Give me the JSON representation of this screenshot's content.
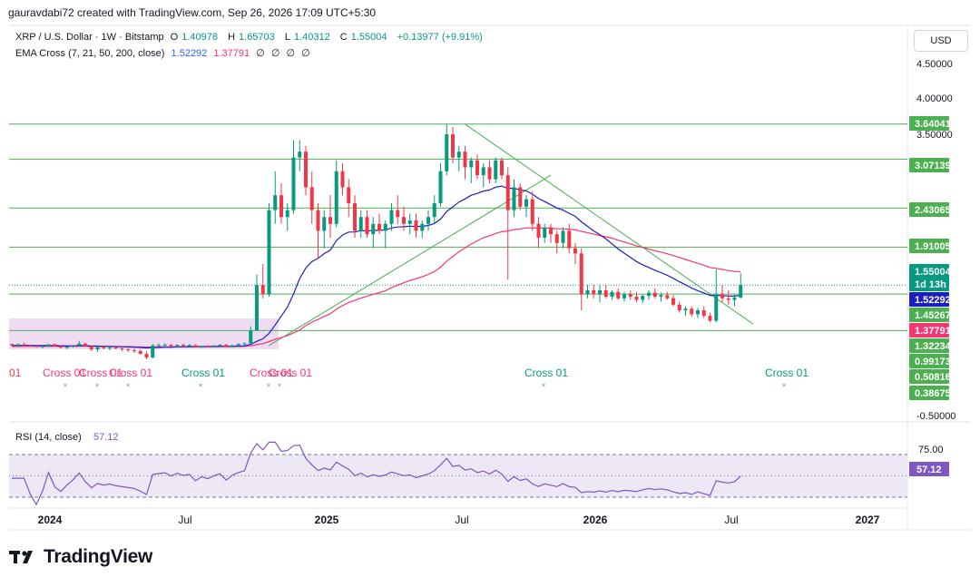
{
  "header": {
    "attribution": "gauravdabi72 created with TradingView.com, Sep 26, 2026 17:09 UTC+5:30"
  },
  "symbol": {
    "name": "XRP / U.S. Dollar · 1W · Bitstamp",
    "open_label": "O",
    "open": "1.40978",
    "high_label": "H",
    "high": "1.65703",
    "low_label": "L",
    "low": "1.40312",
    "close_label": "C",
    "close": "1.55004",
    "change": "+0.13977 (+9.91%)"
  },
  "indicator": {
    "name": "EMA Cross (7, 21, 50, 200, close)",
    "v1": "1.52292",
    "v2": "1.37791",
    "v3": "∅",
    "v4": "∅",
    "v5": "∅",
    "v6": "∅"
  },
  "currency_button": "USD",
  "price_axis": {
    "ticks": [
      {
        "label": "4.50000",
        "value": 4.5
      },
      {
        "label": "4.00000",
        "value": 4.0
      },
      {
        "label": "3.50000",
        "value": 3.5
      },
      {
        "label": "-0.50000",
        "value": -0.5
      }
    ]
  },
  "horizontal_levels": [
    3.64041,
    3.07139,
    2.43065,
    1.91005,
    1.45267,
    0.99173
  ],
  "price_labels": [
    {
      "text": "3.64041",
      "bg": "#4caf50",
      "fg": "#ffffff"
    },
    {
      "text": "3.07139",
      "bg": "#4caf50",
      "fg": "#ffffff"
    },
    {
      "text": "2.43065",
      "bg": "#4caf50",
      "fg": "#ffffff"
    },
    {
      "text": "1.91005",
      "bg": "#4caf50",
      "fg": "#ffffff"
    },
    {
      "text": "1.55004",
      "bg": "#089981",
      "fg": "#ffffff"
    },
    {
      "text": "1d 13h",
      "bg": "#089981",
      "fg": "#ffffff"
    },
    {
      "text": "1.52292",
      "bg": "#1c1fbf",
      "fg": "#ffffff"
    },
    {
      "text": "1.45267",
      "bg": "#4caf50",
      "fg": "#ffffff"
    },
    {
      "text": "1.37791",
      "bg": "#f23673",
      "fg": "#ffffff"
    },
    {
      "text": "1.32234",
      "bg": "#4caf50",
      "fg": "#ffffff"
    },
    {
      "text": "0.99173",
      "bg": "#4caf50",
      "fg": "#ffffff"
    },
    {
      "text": "0.50816",
      "bg": "#4caf50",
      "fg": "#ffffff"
    },
    {
      "text": "0.38675",
      "bg": "#4caf50",
      "fg": "#ffffff"
    }
  ],
  "cross_labels": [
    {
      "text": "Cross 01",
      "color": "#f23673"
    },
    {
      "text": "Cross 01",
      "color": "#f23673"
    },
    {
      "text": "Cross 01",
      "color": "#f23673"
    },
    {
      "text": "Cross 01",
      "color": "#089981"
    },
    {
      "text": "Cross 01",
      "color": "#f23673"
    },
    {
      "text": "Cross 01",
      "color": "#089981"
    },
    {
      "text": "Cross 01",
      "color": "#f23673"
    },
    {
      "text": "Cross 01",
      "color": "#089981"
    }
  ],
  "cross_partial_label": "01",
  "rsi": {
    "label": "RSI (14, close)",
    "value": "57.12",
    "top_level_label": "75.00"
  },
  "time_axis": [
    "2024",
    "Jul",
    "2025",
    "Jul",
    "2026",
    "Jul",
    "2027"
  ],
  "brand": "TradingView",
  "colors": {
    "up": "#089981",
    "down": "#f23645",
    "ema_blue": "#1c1fbf",
    "ema_pink": "#f23673",
    "levels": "#4caf50",
    "rsi_line": "#7e57c2",
    "rsi_band": "#ede7f6"
  },
  "chart_data": {
    "type": "candlestick",
    "title": "XRP / U.S. Dollar · 1W · Bitstamp",
    "candles": [
      [
        0.62,
        0.63,
        0.57,
        0.59
      ],
      [
        0.59,
        0.64,
        0.56,
        0.61
      ],
      [
        0.61,
        0.66,
        0.58,
        0.58
      ],
      [
        0.58,
        0.6,
        0.54,
        0.57
      ],
      [
        0.57,
        0.59,
        0.52,
        0.54
      ],
      [
        0.54,
        0.58,
        0.5,
        0.56
      ],
      [
        0.56,
        0.62,
        0.54,
        0.61
      ],
      [
        0.61,
        0.64,
        0.55,
        0.55
      ],
      [
        0.55,
        0.58,
        0.5,
        0.52
      ],
      [
        0.52,
        0.56,
        0.49,
        0.55
      ],
      [
        0.55,
        0.6,
        0.52,
        0.58
      ],
      [
        0.58,
        0.71,
        0.56,
        0.63
      ],
      [
        0.63,
        0.66,
        0.55,
        0.56
      ],
      [
        0.56,
        0.58,
        0.47,
        0.49
      ],
      [
        0.49,
        0.55,
        0.46,
        0.53
      ],
      [
        0.53,
        0.56,
        0.49,
        0.51
      ],
      [
        0.51,
        0.54,
        0.48,
        0.52
      ],
      [
        0.52,
        0.55,
        0.49,
        0.5
      ],
      [
        0.5,
        0.53,
        0.47,
        0.49
      ],
      [
        0.49,
        0.51,
        0.46,
        0.48
      ],
      [
        0.48,
        0.5,
        0.45,
        0.47
      ],
      [
        0.47,
        0.49,
        0.43,
        0.44
      ],
      [
        0.44,
        0.47,
        0.38,
        0.4
      ],
      [
        0.4,
        0.62,
        0.39,
        0.58
      ],
      [
        0.58,
        0.63,
        0.55,
        0.59
      ],
      [
        0.59,
        0.64,
        0.57,
        0.6
      ],
      [
        0.6,
        0.62,
        0.55,
        0.57
      ],
      [
        0.57,
        0.61,
        0.54,
        0.6
      ],
      [
        0.6,
        0.63,
        0.56,
        0.58
      ],
      [
        0.58,
        0.62,
        0.55,
        0.59
      ],
      [
        0.59,
        0.61,
        0.52,
        0.53
      ],
      [
        0.53,
        0.58,
        0.51,
        0.57
      ],
      [
        0.57,
        0.6,
        0.54,
        0.55
      ],
      [
        0.55,
        0.59,
        0.52,
        0.58
      ],
      [
        0.58,
        0.62,
        0.55,
        0.6
      ],
      [
        0.6,
        0.63,
        0.52,
        0.54
      ],
      [
        0.54,
        0.6,
        0.52,
        0.59
      ],
      [
        0.59,
        0.64,
        0.56,
        0.62
      ],
      [
        0.62,
        0.66,
        0.58,
        0.64
      ],
      [
        0.64,
        1.05,
        0.62,
        1.0
      ],
      [
        1.0,
        1.65,
        0.98,
        1.55
      ],
      [
        1.55,
        1.75,
        1.4,
        1.45
      ],
      [
        1.45,
        2.5,
        1.42,
        2.4
      ],
      [
        2.4,
        2.9,
        2.2,
        2.6
      ],
      [
        2.6,
        2.75,
        2.2,
        2.3
      ],
      [
        2.3,
        2.5,
        2.1,
        2.4
      ],
      [
        2.4,
        3.4,
        2.35,
        3.1
      ],
      [
        3.1,
        3.4,
        2.9,
        3.2
      ],
      [
        3.2,
        3.3,
        2.6,
        2.7
      ],
      [
        2.7,
        2.9,
        2.2,
        2.4
      ],
      [
        2.4,
        2.5,
        1.8,
        2.1
      ],
      [
        2.1,
        2.4,
        1.9,
        2.3
      ],
      [
        2.3,
        2.6,
        2.0,
        2.2
      ],
      [
        2.2,
        3.05,
        2.15,
        2.9
      ],
      [
        2.9,
        3.0,
        2.6,
        2.7
      ],
      [
        2.7,
        2.8,
        2.3,
        2.5
      ],
      [
        2.5,
        2.6,
        2.0,
        2.1
      ],
      [
        2.1,
        2.4,
        2.0,
        2.3
      ],
      [
        2.3,
        2.4,
        2.0,
        2.05
      ],
      [
        2.05,
        2.3,
        1.9,
        2.2
      ],
      [
        2.2,
        2.35,
        2.05,
        2.1
      ],
      [
        2.1,
        2.25,
        1.9,
        2.2
      ],
      [
        2.2,
        2.5,
        2.1,
        2.4
      ],
      [
        2.4,
        2.6,
        2.2,
        2.3
      ],
      [
        2.3,
        2.45,
        2.1,
        2.2
      ],
      [
        2.2,
        2.35,
        2.05,
        2.25
      ],
      [
        2.25,
        2.35,
        2.0,
        2.1
      ],
      [
        2.1,
        2.25,
        2.0,
        2.2
      ],
      [
        2.2,
        2.4,
        2.1,
        2.3
      ],
      [
        2.3,
        2.6,
        2.2,
        2.5
      ],
      [
        2.5,
        3.0,
        2.45,
        2.9
      ],
      [
        2.9,
        3.64,
        2.85,
        3.5
      ],
      [
        3.5,
        3.6,
        3.0,
        3.1
      ],
      [
        3.1,
        3.3,
        2.9,
        3.2
      ],
      [
        3.2,
        3.3,
        2.8,
        2.95
      ],
      [
        2.95,
        3.1,
        2.75,
        3.05
      ],
      [
        3.05,
        3.15,
        2.8,
        2.85
      ],
      [
        2.85,
        3.0,
        2.7,
        2.95
      ],
      [
        2.95,
        3.05,
        2.75,
        2.8
      ],
      [
        2.8,
        3.1,
        2.75,
        3.05
      ],
      [
        3.05,
        3.1,
        2.8,
        2.85
      ],
      [
        2.85,
        2.95,
        1.6,
        2.4
      ],
      [
        2.4,
        2.8,
        2.3,
        2.7
      ],
      [
        2.7,
        2.75,
        2.4,
        2.45
      ],
      [
        2.45,
        2.6,
        2.3,
        2.55
      ],
      [
        2.55,
        2.65,
        2.1,
        2.2
      ],
      [
        2.2,
        2.3,
        1.9,
        2.0
      ],
      [
        2.0,
        2.2,
        1.95,
        2.15
      ],
      [
        2.15,
        2.2,
        1.95,
        2.05
      ],
      [
        2.05,
        2.1,
        1.85,
        1.95
      ],
      [
        1.95,
        2.15,
        1.9,
        2.1
      ],
      [
        2.1,
        2.2,
        1.85,
        1.9
      ],
      [
        1.9,
        1.95,
        1.75,
        1.85
      ],
      [
        1.85,
        1.9,
        1.25,
        1.45
      ],
      [
        1.45,
        1.55,
        1.4,
        1.5
      ],
      [
        1.5,
        1.55,
        1.4,
        1.45
      ],
      [
        1.45,
        1.55,
        1.35,
        1.5
      ],
      [
        1.5,
        1.55,
        1.4,
        1.42
      ],
      [
        1.42,
        1.5,
        1.38,
        1.48
      ],
      [
        1.48,
        1.52,
        1.38,
        1.4
      ],
      [
        1.4,
        1.48,
        1.36,
        1.45
      ],
      [
        1.45,
        1.5,
        1.38,
        1.42
      ],
      [
        1.42,
        1.48,
        1.35,
        1.38
      ],
      [
        1.38,
        1.45,
        1.34,
        1.43
      ],
      [
        1.43,
        1.5,
        1.38,
        1.47
      ],
      [
        1.47,
        1.52,
        1.4,
        1.42
      ],
      [
        1.42,
        1.47,
        1.36,
        1.44
      ],
      [
        1.44,
        1.48,
        1.38,
        1.4
      ],
      [
        1.4,
        1.44,
        1.3,
        1.32
      ],
      [
        1.32,
        1.36,
        1.22,
        1.25
      ],
      [
        1.25,
        1.3,
        1.18,
        1.27
      ],
      [
        1.27,
        1.3,
        1.17,
        1.2
      ],
      [
        1.2,
        1.28,
        1.15,
        1.25
      ],
      [
        1.25,
        1.3,
        1.15,
        1.18
      ],
      [
        1.18,
        1.22,
        1.1,
        1.12
      ],
      [
        1.12,
        1.7,
        1.1,
        1.45
      ],
      [
        1.45,
        1.55,
        1.35,
        1.4
      ],
      [
        1.4,
        1.5,
        1.32,
        1.38
      ],
      [
        1.38,
        1.45,
        1.3,
        1.41
      ],
      [
        1.41,
        1.66,
        1.4,
        1.55
      ]
    ],
    "horizontal_levels": [
      3.64041,
      3.07139,
      2.43065,
      1.91005,
      1.45267,
      0.99173
    ],
    "ema_labels": {
      "fast": "1.52292",
      "slow": "1.37791"
    },
    "rsi_value": 57.12
  }
}
